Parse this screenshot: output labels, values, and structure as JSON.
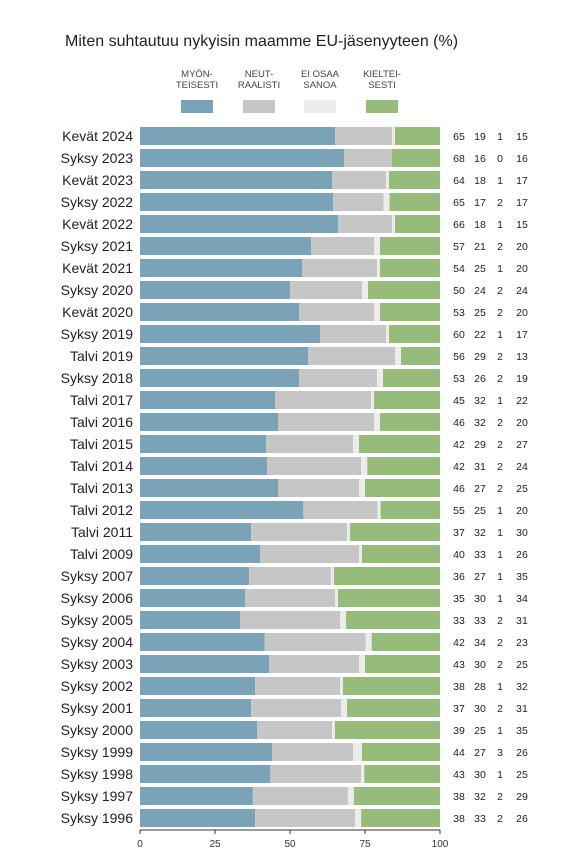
{
  "chart_data": {
    "type": "bar",
    "orientation": "horizontal",
    "stacked": true,
    "title": "Miten suhtautuu nykyisin maamme EU-jäsenyyteen (%)",
    "xlim": [
      0,
      100
    ],
    "xticks": [
      "0",
      "25",
      "50",
      "75",
      "100"
    ],
    "legend_position": "top",
    "series": [
      {
        "name_lines": [
          "MYÖN-",
          "TEISESTI"
        ],
        "color": "#7ba3b8",
        "values": [
          65,
          68,
          64,
          65,
          66,
          57,
          54,
          50,
          53,
          60,
          56,
          53,
          45,
          46,
          42,
          42,
          46,
          55,
          37,
          40,
          36,
          35,
          33,
          42,
          43,
          38,
          37,
          39,
          44,
          43,
          38,
          38
        ]
      },
      {
        "name_lines": [
          "NEUT-",
          "RAALISTI"
        ],
        "color": "#c6c6c6",
        "values": [
          19,
          16,
          18,
          17,
          18,
          21,
          25,
          24,
          25,
          22,
          29,
          26,
          32,
          32,
          29,
          31,
          27,
          25,
          32,
          33,
          27,
          30,
          33,
          34,
          30,
          28,
          30,
          25,
          27,
          30,
          32,
          33
        ]
      },
      {
        "name_lines": [
          "EI OSAA",
          "SANOA"
        ],
        "color": "#ececec",
        "values": [
          1,
          0,
          1,
          2,
          1,
          2,
          1,
          2,
          2,
          1,
          2,
          2,
          1,
          2,
          2,
          2,
          2,
          1,
          1,
          1,
          1,
          1,
          2,
          2,
          2,
          1,
          2,
          1,
          3,
          1,
          2,
          2
        ]
      },
      {
        "name_lines": [
          "KIELTEI-",
          "SESTI"
        ],
        "color": "#96bb7b",
        "values": [
          15,
          16,
          17,
          17,
          15,
          20,
          20,
          24,
          20,
          17,
          13,
          19,
          22,
          20,
          27,
          24,
          25,
          20,
          30,
          26,
          35,
          34,
          31,
          23,
          25,
          32,
          31,
          35,
          26,
          25,
          29,
          26
        ]
      }
    ],
    "categories": [
      "Kevät 2024",
      "Syksy 2023",
      "Kevät 2023",
      "Syksy 2022",
      "Kevät 2022",
      "Syksy 2021",
      "Kevät 2021",
      "Syksy 2020",
      "Kevät 2020",
      "Syksy 2019",
      "Talvi 2019",
      "Syksy 2018",
      "Talvi 2017",
      "Talvi 2016",
      "Talvi 2015",
      "Talvi 2014",
      "Talvi 2013",
      "Talvi 2012",
      "Talvi 2011",
      "Talvi 2009",
      "Syksy 2007",
      "Syksy 2006",
      "Syksy 2005",
      "Syksy 2004",
      "Syksy 2003",
      "Syksy 2002",
      "Syksy 2001",
      "Syksy 2000",
      "Syksy 1999",
      "Syksy 1998",
      "Syksy 1997",
      "Syksy 1996"
    ]
  }
}
